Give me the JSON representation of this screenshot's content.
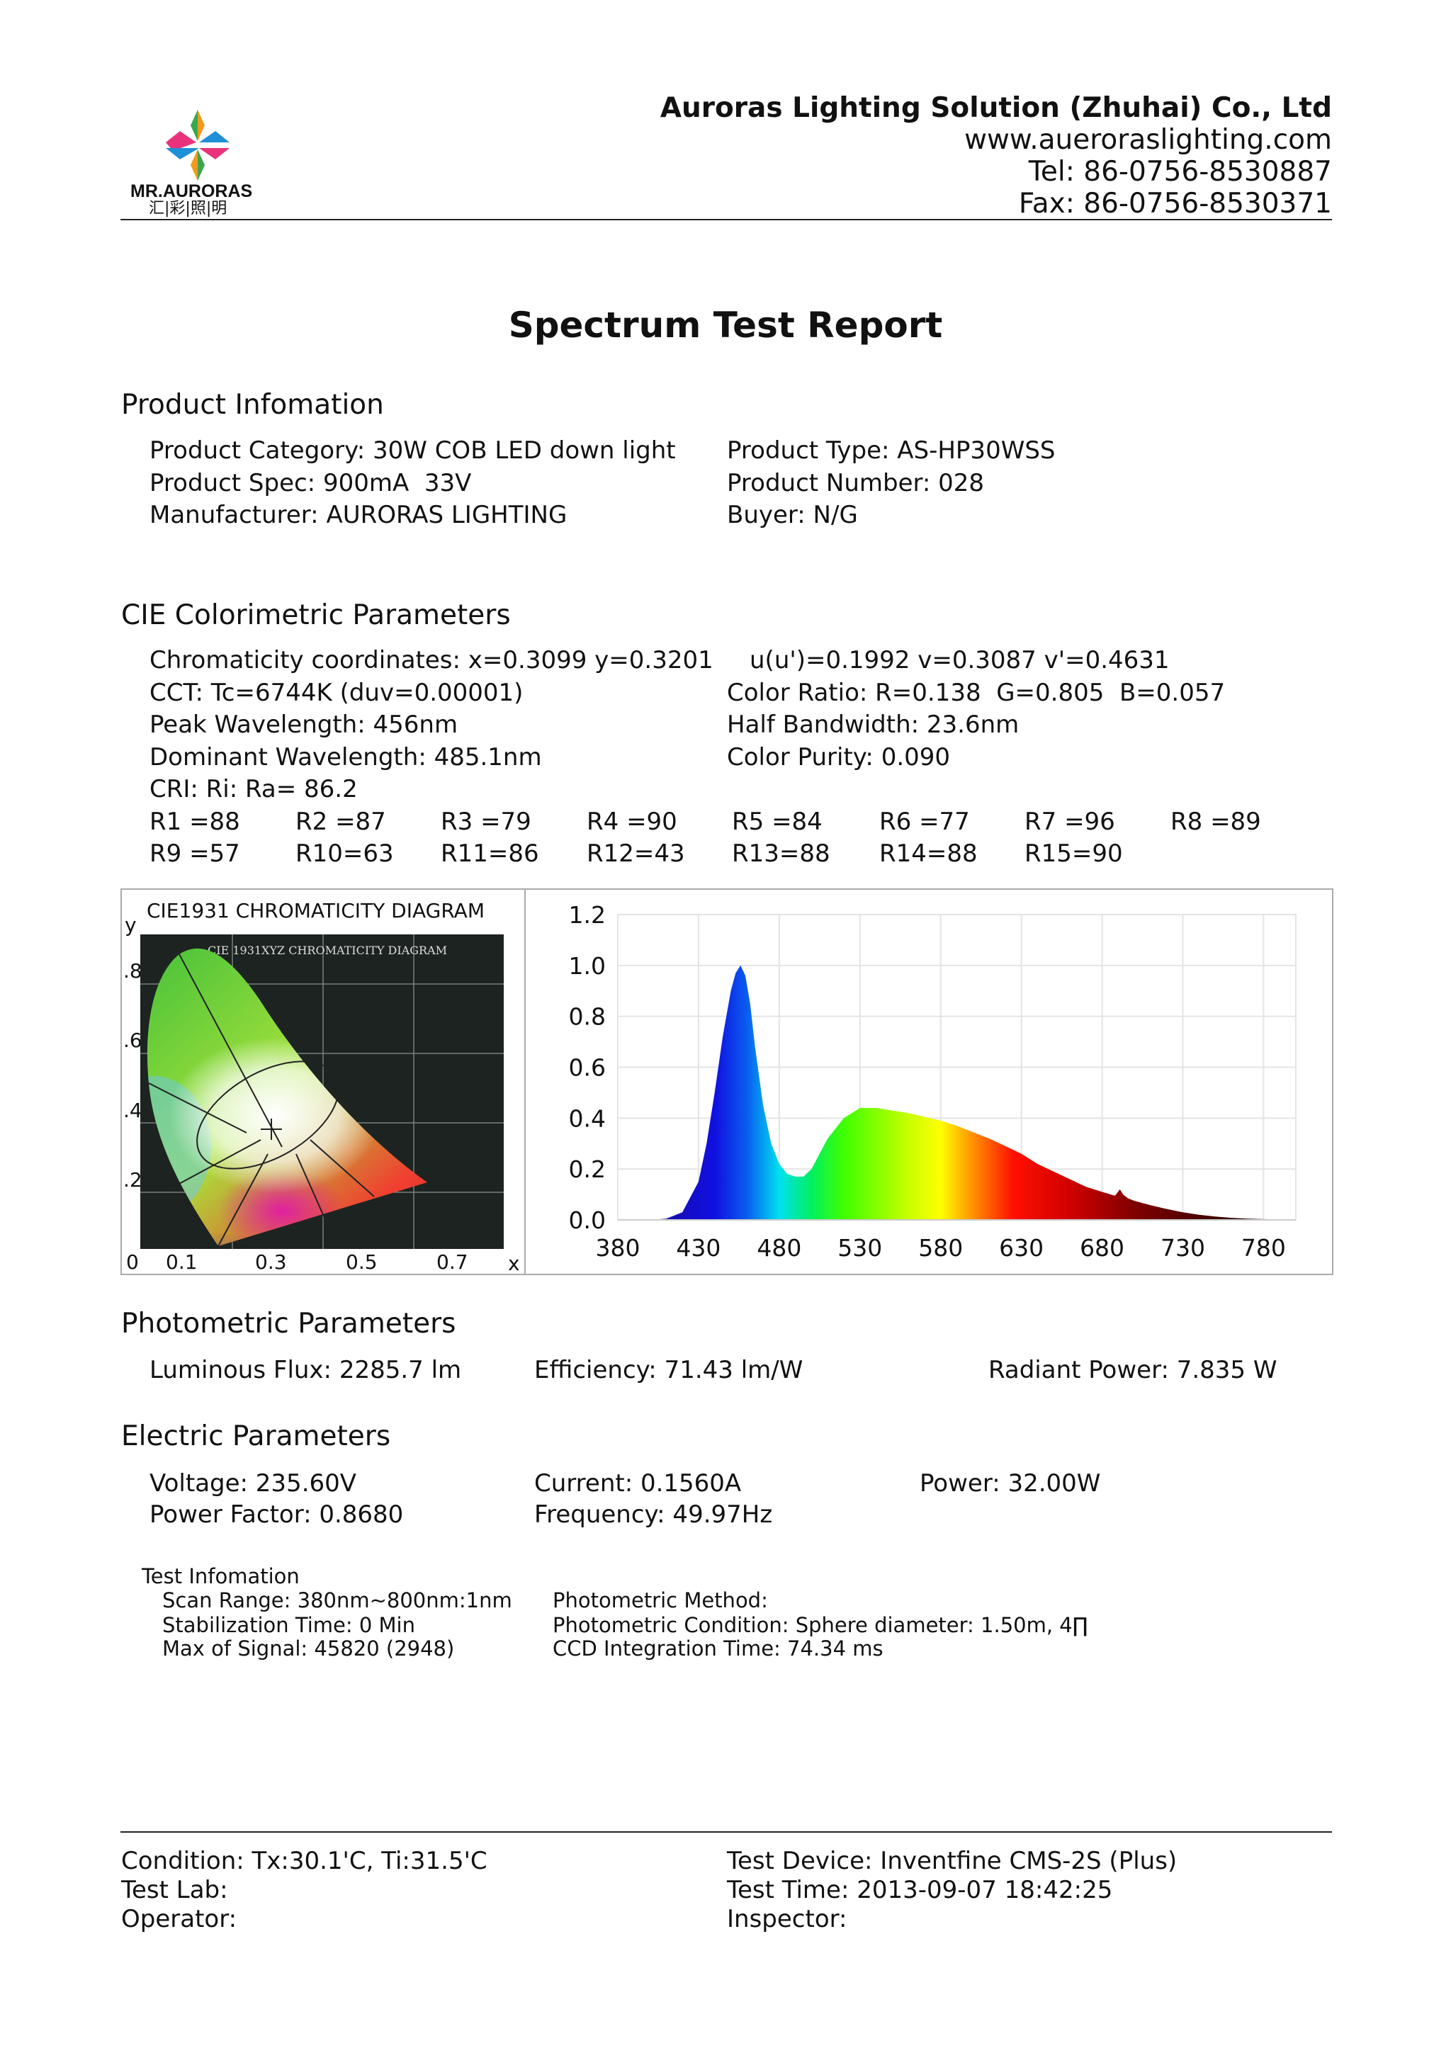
{
  "header": {
    "logo_text": "MR.AURORAS",
    "logo_subtext": "汇|彩|照|明",
    "company": "Auroras Lighting Solution (Zhuhai) Co., Ltd",
    "website": "www.aueroraslighting.com",
    "tel": "Tel: 86-0756-8530887",
    "fax": "Fax: 86-0756-8530371"
  },
  "title": "Spectrum Test Report",
  "product": {
    "heading": "Product Infomation",
    "category": "Product Category: 30W COB LED down light",
    "spec": "Product Spec: 900mA  33V",
    "manufacturer": "Manufacturer: AURORAS LIGHTING",
    "type": "Product Type: AS-HP30WSS",
    "number": "Product Number: 028",
    "buyer": "Buyer: N/G"
  },
  "cie": {
    "heading": "CIE Colorimetric Parameters",
    "chromaticity": "Chromaticity coordinates: x=0.3099 y=0.3201",
    "uv": "u(u')=0.1992 v=0.3087 v'=0.4631",
    "cct": "CCT: Tc=6744K (duv=0.00001)",
    "color_ratio": "Color Ratio: R=0.138  G=0.805  B=0.057",
    "peak": "Peak Wavelength: 456nm",
    "half_bandwidth": "Half Bandwidth: 23.6nm",
    "dominant": "Dominant Wavelength: 485.1nm",
    "purity": "Color Purity: 0.090",
    "cri": "CRI: Ri: Ra= 86.2",
    "r_row1": [
      "R1 =88",
      "R2 =87",
      "R3 =79",
      "R4 =90",
      "R5 =84",
      "R6 =77",
      "R7 =96",
      "R8 =89"
    ],
    "r_row2": [
      "R9 =57",
      "R10=63",
      "R11=86",
      "R12=43",
      "R13=88",
      "R14=88",
      "R15=90"
    ]
  },
  "cie_diagram": {
    "title": "CIE1931 CHROMATICITY DIAGRAM",
    "inner_title": "CIE 1931XYZ CHROMATICITY DIAGRAM",
    "y_label": "y",
    "x_label": "x",
    "y_ticks": [
      ".8",
      ".6",
      ".4",
      ".2"
    ],
    "x_ticks": [
      "0",
      "0.1",
      "0.3",
      "0.5",
      "0.7"
    ],
    "point": {
      "x": 0.3099,
      "y": 0.3201
    }
  },
  "chart_data": {
    "type": "area",
    "title": "",
    "xlabel": "",
    "ylabel": "",
    "xlim": [
      380,
      800
    ],
    "ylim": [
      0,
      1.2
    ],
    "grid": true,
    "x_ticks": [
      "380",
      "430",
      "480",
      "530",
      "580",
      "630",
      "680",
      "730",
      "780"
    ],
    "y_ticks": [
      "1.2",
      "1.0",
      "0.8",
      "0.6",
      "0.4",
      "0.2",
      "0.0"
    ],
    "fill": "wavelength-colored spectrum",
    "x": [
      380,
      400,
      410,
      420,
      430,
      435,
      440,
      445,
      450,
      453,
      456,
      459,
      462,
      465,
      470,
      475,
      480,
      485,
      490,
      495,
      500,
      505,
      510,
      520,
      530,
      540,
      550,
      560,
      570,
      580,
      590,
      600,
      610,
      620,
      630,
      640,
      650,
      660,
      670,
      680,
      688,
      691,
      693,
      696,
      700,
      710,
      720,
      730,
      740,
      750,
      760,
      770,
      780,
      790,
      800
    ],
    "y": [
      0,
      0.0,
      0.005,
      0.03,
      0.15,
      0.3,
      0.5,
      0.72,
      0.9,
      0.97,
      1.0,
      0.96,
      0.85,
      0.68,
      0.45,
      0.3,
      0.22,
      0.18,
      0.17,
      0.17,
      0.2,
      0.26,
      0.32,
      0.4,
      0.44,
      0.44,
      0.43,
      0.42,
      0.405,
      0.39,
      0.37,
      0.345,
      0.32,
      0.29,
      0.26,
      0.22,
      0.19,
      0.16,
      0.13,
      0.11,
      0.095,
      0.12,
      0.1,
      0.085,
      0.075,
      0.058,
      0.043,
      0.03,
      0.02,
      0.013,
      0.008,
      0.005,
      0.003,
      0.002,
      0.001
    ]
  },
  "photometric": {
    "heading": "Photometric Parameters",
    "flux": "Luminous Flux: 2285.7 lm",
    "efficiency": "Efficiency: 71.43 lm/W",
    "radiant": "Radiant Power: 7.835 W"
  },
  "electric": {
    "heading": "Electric Parameters",
    "voltage": "Voltage: 235.60V",
    "current": "Current: 0.1560A",
    "power": "Power: 32.00W",
    "pf": "Power Factor: 0.8680",
    "frequency": "Frequency: 49.97Hz"
  },
  "test_info": {
    "heading": "Test Infomation",
    "scan": "Scan Range: 380nm~800nm:1nm",
    "stabilization": "Stabilization Time: 0 Min",
    "max_signal": "Max of Signal: 45820 (2948)",
    "method": "Photometric Method:",
    "condition": "Photometric Condition: Sphere diameter: 1.50m, 4∏",
    "ccd": "CCD Integration Time: 74.34 ms"
  },
  "footer": {
    "condition": "Condition: Tx:30.1'C, Ti:31.5'C",
    "lab": "Test Lab:",
    "operator": "Operator:",
    "device": "Test Device: Inventfine CMS-2S (Plus)",
    "time": "Test Time: 2013-09-07 18:42:25",
    "inspector": "Inspector:"
  }
}
